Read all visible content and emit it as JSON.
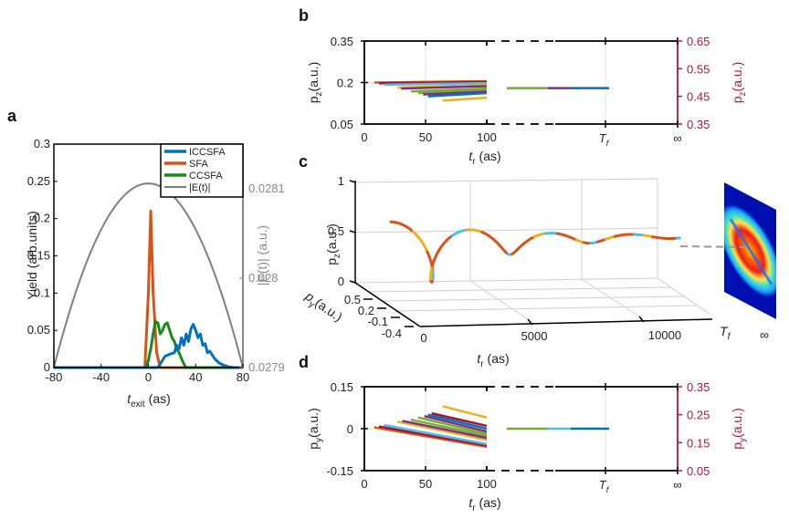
{
  "panels": {
    "a": "a",
    "b": "b",
    "c": "c",
    "d": "d"
  },
  "chart_data": [
    {
      "id": "a",
      "type": "line",
      "xlabel_main": "t",
      "xlabel_sub": "exit",
      "xlabel_unit": "(as)",
      "ylabel": "Yield (arb.units)",
      "y2label": "|E(t)| (a.u.)",
      "xlim": [
        -80,
        80
      ],
      "ylim": [
        0,
        0.3
      ],
      "y2lim": [
        0.0279,
        0.02815
      ],
      "xticks": [
        "-80",
        "-40",
        "0",
        "40",
        "80"
      ],
      "xtick_values": [
        -80,
        -40,
        0,
        40,
        80
      ],
      "yticks": [
        "0",
        "0.05",
        "0.1",
        "0.15",
        "0.2",
        "0.25",
        "0.3"
      ],
      "ytick_values": [
        0,
        0.05,
        0.1,
        0.15,
        0.2,
        0.25,
        0.3
      ],
      "y2ticks": [
        "0.0279",
        "0.028",
        "0.0281"
      ],
      "y2tick_values": [
        0.0279,
        0.028,
        0.0281
      ],
      "legend_position": "top-right",
      "series": [
        {
          "name": "ICCSFA",
          "color": "#0072bd",
          "x": [
            -80,
            8,
            10,
            14,
            18,
            22,
            24,
            26,
            28,
            30,
            32,
            34,
            36,
            38,
            40,
            42,
            44,
            46,
            48,
            50,
            52,
            56,
            60,
            64,
            68,
            72,
            80
          ],
          "y": [
            0,
            0,
            0.005,
            0.015,
            0.018,
            0.02,
            0.03,
            0.025,
            0.04,
            0.03,
            0.045,
            0.035,
            0.052,
            0.058,
            0.05,
            0.04,
            0.045,
            0.03,
            0.032,
            0.02,
            0.022,
            0.012,
            0.006,
            0.003,
            0.001,
            0,
            0
          ]
        },
        {
          "name": "SFA",
          "color": "#d95319",
          "x": [
            -80,
            -3,
            0,
            2,
            4,
            7,
            10,
            80
          ],
          "y": [
            0,
            0,
            0.1,
            0.21,
            0.1,
            0.02,
            0,
            0
          ]
        },
        {
          "name": "CCSFA",
          "color": "#1a8a1a",
          "x": [
            -80,
            -2,
            0,
            2,
            4,
            6,
            8,
            10,
            12,
            14,
            16,
            18,
            20,
            22,
            24,
            26,
            28,
            30,
            32,
            80
          ],
          "y": [
            0,
            0,
            0.01,
            0.025,
            0.045,
            0.062,
            0.06,
            0.045,
            0.05,
            0.058,
            0.06,
            0.05,
            0.04,
            0.035,
            0.025,
            0.02,
            0.012,
            0.005,
            0,
            0
          ]
        },
        {
          "name": "|E(t)|",
          "color": "#808080",
          "axis": "right",
          "x": [
            -80,
            -60,
            -40,
            -20,
            0,
            20,
            40,
            60,
            80
          ],
          "y": [
            0.0279,
            0.027994,
            0.028056,
            0.028094,
            0.028106,
            0.028094,
            0.028056,
            0.027994,
            0.0279
          ]
        }
      ]
    },
    {
      "id": "b",
      "type": "line",
      "xlabel_main": "t",
      "xlabel_sub": "r",
      "xlabel_unit": "(as)",
      "ylabel_main": "p",
      "ylabel_sub": "z",
      "ylabel_unit": "(a.u.)",
      "y2label_main": "p",
      "y2label_sub": "z",
      "y2label_unit": "(a.u.)",
      "xlim": [
        0,
        100
      ],
      "ylim": [
        0.05,
        0.35
      ],
      "y2lim": [
        0.35,
        0.65
      ],
      "xticks": [
        "0",
        "50",
        "100"
      ],
      "xtick_values": [
        0,
        50,
        100
      ],
      "x_extra_ticks": [
        "T_f",
        "∞"
      ],
      "yticks": [
        "0.05",
        "0.2",
        "0.35"
      ],
      "ytick_values": [
        0.05,
        0.2,
        0.35
      ],
      "y2ticks": [
        "0.35",
        "0.45",
        "0.55",
        "0.65"
      ],
      "y2tick_values": [
        0.35,
        0.45,
        0.55,
        0.65
      ],
      "axis_break": true,
      "trajectories": [
        {
          "color": "#d95319",
          "x0": 8,
          "y0": 0.2,
          "y1": 0.205
        },
        {
          "color": "#a2142f",
          "x0": 12,
          "y0": 0.197,
          "y1": 0.202
        },
        {
          "color": "#4dbeee",
          "x0": 16,
          "y0": 0.192,
          "y1": 0.198
        },
        {
          "color": "#edb120",
          "x0": 27,
          "y0": 0.182,
          "y1": 0.191
        },
        {
          "color": "#7e2f8e",
          "x0": 30,
          "y0": 0.178,
          "y1": 0.187
        },
        {
          "color": "#77ac30",
          "x0": 38,
          "y0": 0.168,
          "y1": 0.178
        },
        {
          "color": "#77ac30",
          "x0": 44,
          "y0": 0.162,
          "y1": 0.172
        },
        {
          "color": "#7e2f8e",
          "x0": 48,
          "y0": 0.157,
          "y1": 0.167
        },
        {
          "color": "#0072bd",
          "x0": 52,
          "y0": 0.15,
          "y1": 0.162
        },
        {
          "color": "#edb120",
          "x0": 64,
          "y0": 0.135,
          "y1": 0.145
        }
      ],
      "final_value": 0.48,
      "final_colors": [
        "#77ac30",
        "#7e2f8e",
        "#0072bd"
      ]
    },
    {
      "id": "c",
      "type": "line",
      "is_3d": true,
      "xlabel_main": "t",
      "xlabel_sub": "r",
      "xlabel_unit": "(as)",
      "ylabel_main": "p",
      "ylabel_sub": "y",
      "ylabel_unit": "(a.u.)",
      "zlabel_main": "p",
      "zlabel_sub": "z",
      "zlabel_unit": "(a.u.)",
      "xticks": [
        "0",
        "5000",
        "10000"
      ],
      "xtick_values": [
        0,
        5000,
        10000
      ],
      "x_extra_ticks": [
        "T_f",
        "∞"
      ],
      "yticks": [
        "0.5",
        "0.2",
        "-0.1",
        "-0.4"
      ],
      "zticks": [
        "0",
        "0.5",
        "1"
      ],
      "colors": [
        "#d95319",
        "#edb120",
        "#4dbeee",
        "#77ac30"
      ],
      "heatmap": "momentum distribution at infinity"
    },
    {
      "id": "d",
      "type": "line",
      "xlabel_main": "t",
      "xlabel_sub": "r",
      "xlabel_unit": "(as)",
      "ylabel_main": "p",
      "ylabel_sub": "y",
      "ylabel_unit": "(a.u.)",
      "y2label_main": "p",
      "y2label_sub": "y",
      "y2label_unit": "(a.u.)",
      "xlim": [
        0,
        100
      ],
      "ylim": [
        -0.15,
        0.15
      ],
      "y2lim": [
        0.05,
        0.35
      ],
      "xticks": [
        "0",
        "50",
        "100"
      ],
      "xtick_values": [
        0,
        50,
        100
      ],
      "x_extra_ticks": [
        "T_f",
        "∞"
      ],
      "yticks": [
        "-0.15",
        "0",
        "0.15"
      ],
      "ytick_values": [
        -0.15,
        0,
        0.15
      ],
      "y2ticks": [
        "0.05",
        "0.15",
        "0.25",
        "0.35"
      ],
      "y2tick_values": [
        0.05,
        0.15,
        0.25,
        0.35
      ],
      "axis_break": true,
      "trajectories": [
        {
          "color": "#d95319",
          "x0": 8,
          "y0": 0.005,
          "y1": -0.065
        },
        {
          "color": "#a2142f",
          "x0": 12,
          "y0": 0.008,
          "y1": -0.06
        },
        {
          "color": "#4dbeee",
          "x0": 16,
          "y0": 0.013,
          "y1": -0.055
        },
        {
          "color": "#edb120",
          "x0": 27,
          "y0": 0.025,
          "y1": -0.04
        },
        {
          "color": "#7e2f8e",
          "x0": 31,
          "y0": 0.028,
          "y1": -0.033
        },
        {
          "color": "#77ac30",
          "x0": 38,
          "y0": 0.032,
          "y1": -0.025
        },
        {
          "color": "#77ac30",
          "x0": 44,
          "y0": 0.04,
          "y1": -0.018
        },
        {
          "color": "#7e2f8e",
          "x0": 49,
          "y0": 0.045,
          "y1": -0.01
        },
        {
          "color": "#0072bd",
          "x0": 52,
          "y0": 0.05,
          "y1": 0.0
        },
        {
          "color": "#a2142f",
          "x0": 55,
          "y0": 0.055,
          "y1": 0.01
        },
        {
          "color": "#edb120",
          "x0": 64,
          "y0": 0.08,
          "y1": 0.04
        }
      ],
      "final_value": 0.2,
      "final_colors": [
        "#77ac30",
        "#4dbeee",
        "#0072bd"
      ]
    }
  ]
}
